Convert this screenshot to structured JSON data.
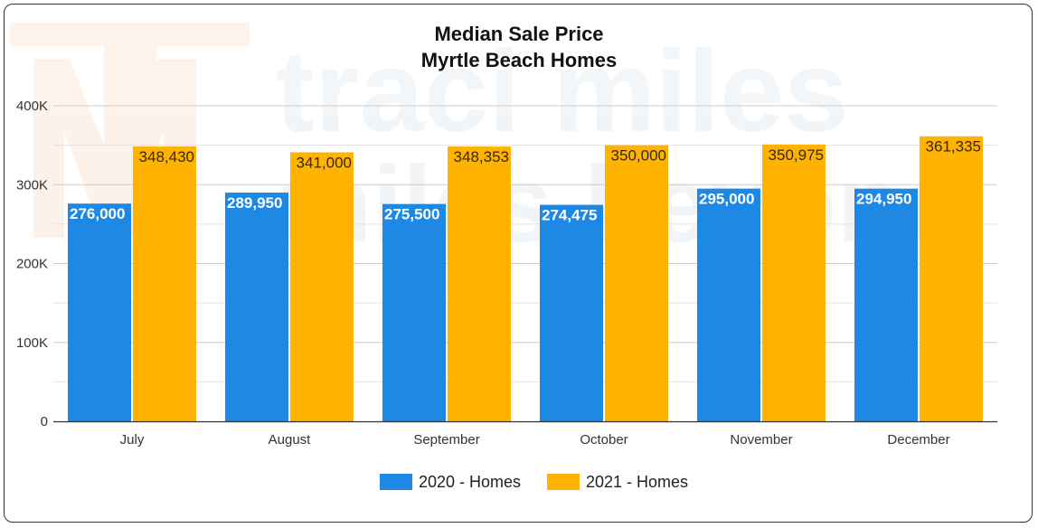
{
  "colors": {
    "series_2020": "#1e88e5",
    "series_2021": "#ffb300",
    "grid": "#cccccc",
    "axis": "#333333",
    "watermark_orange": "#f6a25b",
    "watermark_blue": "#7fa7c9"
  },
  "watermark": {
    "line1": "traci miles",
    "line2": "miles beyond"
  },
  "chart_data": {
    "type": "bar",
    "title": "Median Sale Price",
    "subtitle": "Myrtle Beach Homes",
    "xlabel": "",
    "ylabel": "",
    "ylim": [
      0,
      400000
    ],
    "yticks": [
      0,
      100000,
      200000,
      300000,
      400000
    ],
    "ytick_labels": [
      "0",
      "100K",
      "200K",
      "300K",
      "400K"
    ],
    "grid": true,
    "legend_position": "bottom",
    "categories": [
      "July",
      "August",
      "September",
      "October",
      "November",
      "December"
    ],
    "series": [
      {
        "name": "2020 - Homes",
        "values": [
          276000,
          289950,
          275500,
          274475,
          295000,
          294950
        ],
        "labels": [
          "276,000",
          "289,950",
          "275,500",
          "274,475",
          "295,000",
          "294,950"
        ]
      },
      {
        "name": "2021 - Homes",
        "values": [
          348430,
          341000,
          348353,
          350000,
          350975,
          361335
        ],
        "labels": [
          "348,430",
          "341,000",
          "348,353",
          "350,000",
          "350,975",
          "361,335"
        ]
      }
    ]
  }
}
